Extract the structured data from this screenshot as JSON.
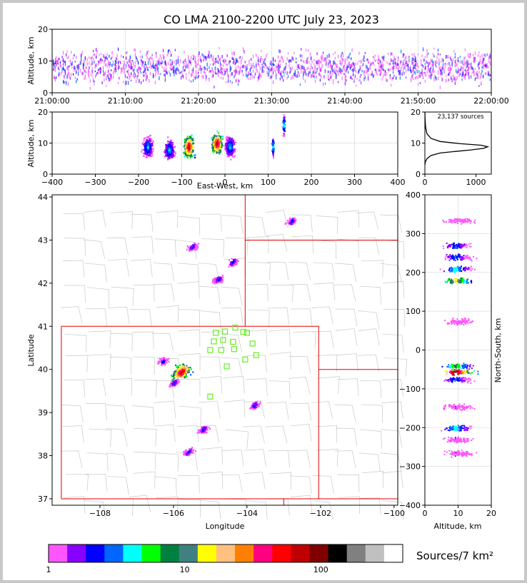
{
  "chart_data": [
    {
      "type": "scatter",
      "panel": "altitude-time",
      "title": "CO LMA 2100-2200 UTC July 23, 2023",
      "ylabel": "Altitude, km",
      "xlim": [
        "21:00:00",
        "22:00:00"
      ],
      "ylim": [
        0,
        20
      ],
      "xticks": [
        "21:00:00",
        "21:10:00",
        "21:20:00",
        "21:30:00",
        "21:40:00",
        "21:50:00",
        "22:00:00"
      ],
      "yticks": [
        "0",
        "10",
        "20"
      ],
      "grid": true
    },
    {
      "type": "heatmap",
      "panel": "altitude-eastwest",
      "xlabel": "East-West, km",
      "ylabel": "Altitude, km",
      "xlim": [
        -400,
        400
      ],
      "ylim": [
        0,
        20
      ],
      "xticks": [
        "−400",
        "−300",
        "−200",
        "−100",
        "0",
        "100",
        "200",
        "300",
        "400"
      ],
      "yticks": [
        "0",
        "10",
        "20"
      ],
      "clusters": [
        {
          "x": -180,
          "alt": 9
        },
        {
          "x": -130,
          "alt": 8
        },
        {
          "x": -85,
          "alt": 9
        },
        {
          "x": -20,
          "alt": 10
        },
        {
          "x": 10,
          "alt": 9
        },
        {
          "x": 110,
          "alt": 9
        },
        {
          "x": 135,
          "alt": 16
        }
      ],
      "grid": true
    },
    {
      "type": "line",
      "panel": "altitude-histogram",
      "annotation": "23,137 sources",
      "xlim": [
        0,
        1300
      ],
      "ylim": [
        0,
        20
      ],
      "xticks": [
        "0",
        "1000"
      ],
      "yticks": [
        "0",
        "10",
        "20"
      ],
      "x": [
        0,
        10,
        40,
        120,
        300,
        600,
        900,
        1150,
        1230,
        1100,
        700,
        300,
        120,
        40,
        15,
        5,
        0
      ],
      "y": [
        3,
        4,
        5,
        6,
        6.8,
        7.3,
        7.8,
        8.3,
        8.8,
        9.3,
        9.8,
        10.5,
        11.5,
        13,
        15,
        17,
        20
      ]
    },
    {
      "type": "heatmap",
      "panel": "plan-view",
      "xlabel": "Longitude",
      "ylabel": "Latitude",
      "xlim": [
        -109.3,
        -99.9
      ],
      "ylim": [
        36.85,
        44.05
      ],
      "xticks": [
        "−108",
        "−106",
        "−104",
        "−102",
        "−100"
      ],
      "yticks": [
        "37",
        "38",
        "39",
        "40",
        "41",
        "42",
        "43",
        "44"
      ],
      "clusters": [
        {
          "lon": -105.8,
          "lat": 39.95
        },
        {
          "lon": -105.5,
          "lat": 42.85
        },
        {
          "lon": -104.8,
          "lat": 42.1
        },
        {
          "lon": -104.4,
          "lat": 42.5
        },
        {
          "lon": -106.3,
          "lat": 40.2
        },
        {
          "lon": -106.0,
          "lat": 39.7
        },
        {
          "lon": -105.2,
          "lat": 38.62
        },
        {
          "lon": -105.6,
          "lat": 38.1
        },
        {
          "lon": -103.8,
          "lat": 39.18
        },
        {
          "lon": -102.8,
          "lat": 43.45
        }
      ],
      "stations": [
        {
          "lon": -104.32,
          "lat": 40.97
        },
        {
          "lon": -104.85,
          "lat": 40.85
        },
        {
          "lon": -104.6,
          "lat": 40.88
        },
        {
          "lon": -104.1,
          "lat": 40.87
        },
        {
          "lon": -104.0,
          "lat": 40.85
        },
        {
          "lon": -104.9,
          "lat": 40.65
        },
        {
          "lon": -104.65,
          "lat": 40.68
        },
        {
          "lon": -104.38,
          "lat": 40.64
        },
        {
          "lon": -103.85,
          "lat": 40.6
        },
        {
          "lon": -105.0,
          "lat": 40.45
        },
        {
          "lon": -104.7,
          "lat": 40.45
        },
        {
          "lon": -104.35,
          "lat": 40.47
        },
        {
          "lon": -103.75,
          "lat": 40.33
        },
        {
          "lon": -104.05,
          "lat": 40.23
        },
        {
          "lon": -104.55,
          "lat": 40.07
        },
        {
          "lon": -105.0,
          "lat": 39.37
        }
      ]
    },
    {
      "type": "heatmap",
      "panel": "northsouth-altitude",
      "xlabel": "Altitude, km",
      "ylabel": "North-South, km",
      "xlim": [
        0,
        20
      ],
      "ylim": [
        -400,
        400
      ],
      "xticks": [
        "0",
        "10",
        "20"
      ],
      "yticks": [
        "−400",
        "−300",
        "−200",
        "−100",
        "0",
        "100",
        "200",
        "300",
        "400"
      ]
    }
  ],
  "colorbar": {
    "label": "Sources/7 km²",
    "scale": "log",
    "ticks": [
      "1",
      "10",
      "100"
    ],
    "colors": [
      "#ff55ff",
      "#8800ff",
      "#0000ff",
      "#0066ff",
      "#00ffff",
      "#00ff00",
      "#008040",
      "#408080",
      "#ffff00",
      "#ffc080",
      "#ff8000",
      "#ff0080",
      "#ff0000",
      "#c00000",
      "#800000",
      "#000000",
      "#808080",
      "#c0c0c0",
      "#ffffff"
    ]
  },
  "colors": {
    "state_border": "#e00000",
    "county_border": "#c8c8c8",
    "station": "#66ee22"
  }
}
